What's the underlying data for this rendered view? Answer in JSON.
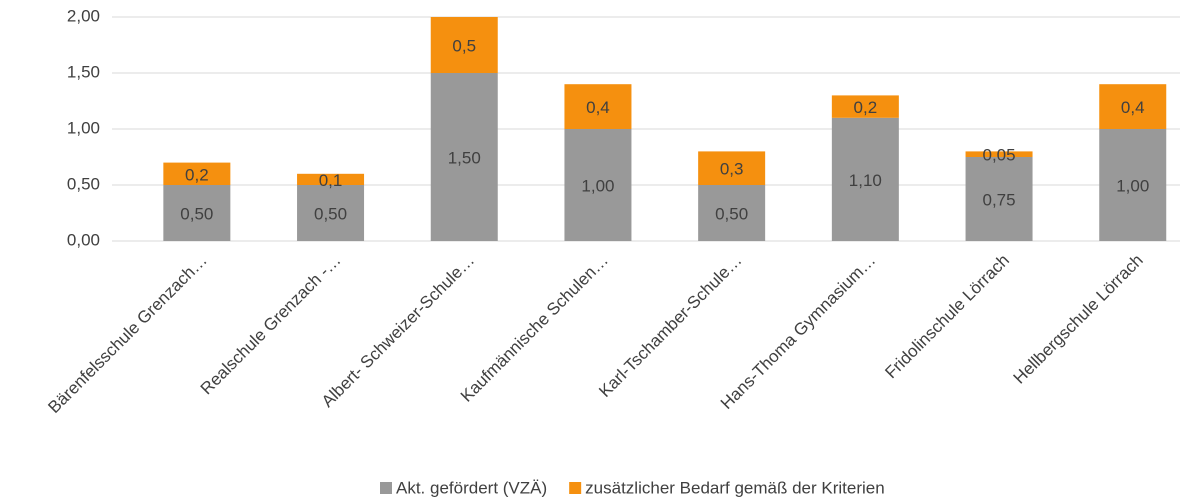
{
  "chart_data": {
    "type": "stacked_bar",
    "categories": [
      "Bärenfelsschule Grenzach…",
      "Realschule Grenzach -…",
      "Albert- Schweizer-Schule…",
      "Kaufmännische Schulen…",
      "Karl-Tschamber-Schule…",
      "Hans-Thoma Gymnasium…",
      "Fridolinschule Lörrach",
      "Hellbergschule Lörrach"
    ],
    "series": [
      {
        "name": "Akt. gefördert (VZÄ)",
        "color": "#999999",
        "values": [
          0.5,
          0.5,
          1.5,
          1.0,
          0.5,
          1.1,
          0.75,
          1.0
        ],
        "value_labels": [
          "0,50",
          "0,50",
          "1,50",
          "1,00",
          "0,50",
          "1,10",
          "0,75",
          "1,00"
        ]
      },
      {
        "name": "zusätzlicher Bedarf gemäß der Kriterien",
        "color": "#f5900f",
        "values": [
          0.2,
          0.1,
          0.5,
          0.4,
          0.3,
          0.2,
          0.05,
          0.4
        ],
        "value_labels": [
          "0,2",
          "0,1",
          "0,5",
          "0,4",
          "0,3",
          "0,2",
          "0,05",
          "0,4"
        ]
      }
    ],
    "ylim": [
      0,
      2
    ],
    "yticks": [
      {
        "value": 0,
        "label": "0,00"
      },
      {
        "value": 0.5,
        "label": "0,50"
      },
      {
        "value": 1,
        "label": "1,00"
      },
      {
        "value": 1.5,
        "label": "1,50"
      },
      {
        "value": 2,
        "label": "2,00"
      }
    ],
    "grid": true,
    "legend": "bottom"
  }
}
